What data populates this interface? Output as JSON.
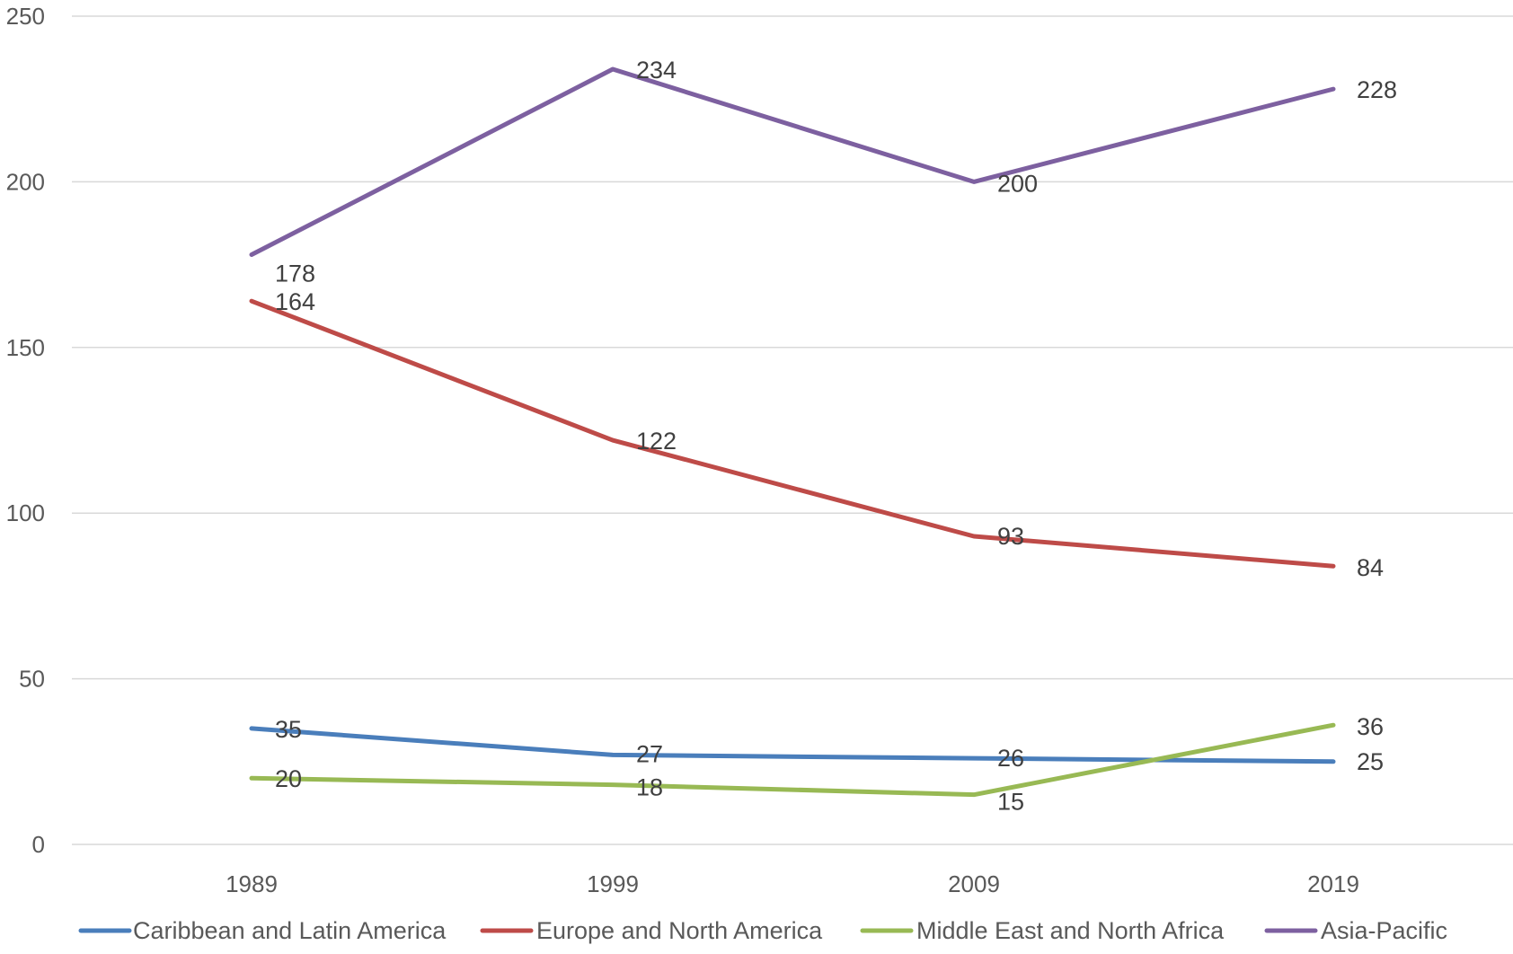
{
  "chart_data": {
    "type": "line",
    "title": "",
    "xlabel": "",
    "ylabel": "",
    "categories": [
      "1989",
      "1999",
      "2009",
      "2019"
    ],
    "ylim": [
      0,
      250
    ],
    "yticks": [
      0,
      50,
      100,
      150,
      200,
      250
    ],
    "grid": true,
    "legend_position": "bottom",
    "series": [
      {
        "name": "Caribbean and Latin America",
        "color": "#4a7ebb",
        "values": [
          35,
          27,
          26,
          25
        ]
      },
      {
        "name": "Europe and North America",
        "color": "#be4b48",
        "values": [
          164,
          122,
          93,
          84
        ]
      },
      {
        "name": "Middle East and North Africa",
        "color": "#98b954",
        "values": [
          20,
          18,
          15,
          36
        ]
      },
      {
        "name": "Asia-Pacific",
        "color": "#7d60a0",
        "values": [
          178,
          234,
          200,
          228
        ]
      }
    ]
  }
}
